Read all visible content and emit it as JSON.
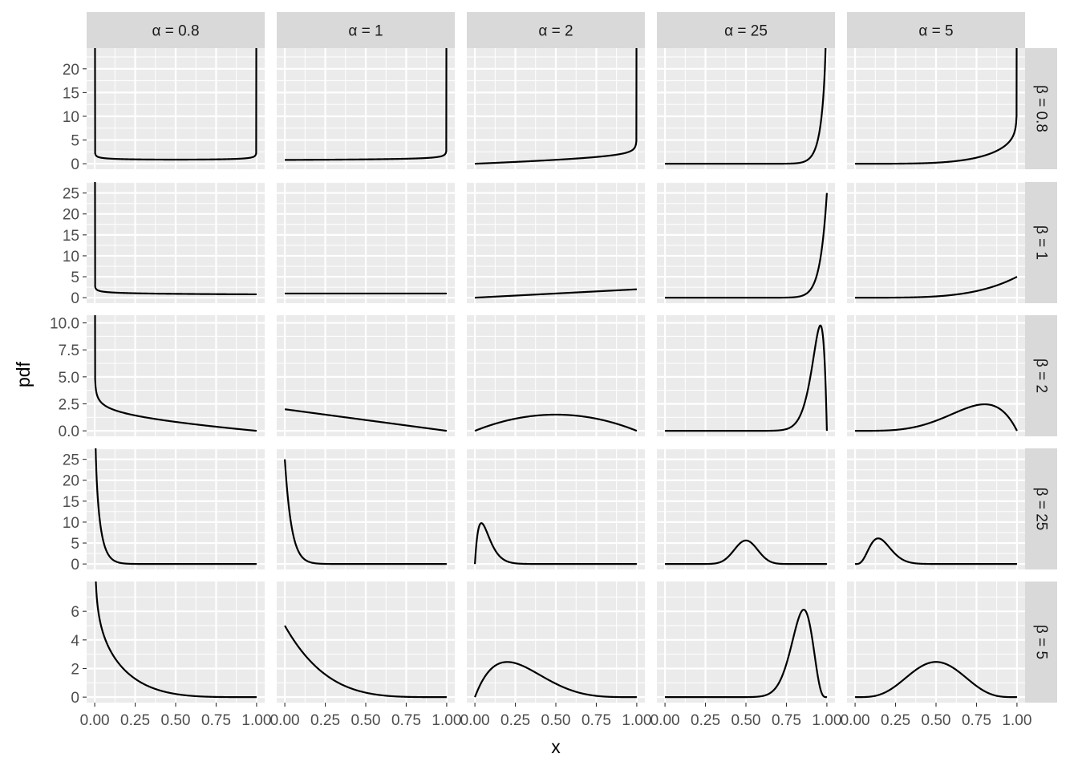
{
  "chart_data": {
    "type": "line",
    "title": "",
    "xlabel": "x",
    "ylabel": "pdf",
    "column_facet_labels": [
      "α = 0.8",
      "α = 1",
      "α = 2",
      "α = 25",
      "α = 5"
    ],
    "row_facet_labels": [
      "β = 0.8",
      "β = 1",
      "β = 2",
      "β = 25",
      "β = 5"
    ],
    "alpha_values": [
      0.8,
      1,
      2,
      25,
      5
    ],
    "beta_values": [
      0.8,
      1,
      2,
      25,
      5
    ],
    "xlim": [
      0,
      1
    ],
    "x_ticks": [
      0,
      0.25,
      0.5,
      0.75,
      1
    ],
    "x_tick_labels": [
      "0.00",
      "0.25",
      "0.50",
      "0.75",
      "1.00"
    ],
    "rows": [
      {
        "ylim": [
          0,
          23.2
        ],
        "y_ticks": [
          0,
          5,
          10,
          15,
          20
        ],
        "y_tick_labels": [
          "0",
          "5",
          "10",
          "15",
          "20"
        ]
      },
      {
        "ylim": [
          0,
          26.3
        ],
        "y_ticks": [
          0,
          5,
          10,
          15,
          20,
          25
        ],
        "y_tick_labels": [
          "0",
          "5",
          "10",
          "15",
          "20",
          "25"
        ]
      },
      {
        "ylim": [
          0,
          10.2
        ],
        "y_ticks": [
          0,
          2.5,
          5,
          7.5,
          10
        ],
        "y_tick_labels": [
          "0.0",
          "2.5",
          "5.0",
          "7.5",
          "10.0"
        ]
      },
      {
        "ylim": [
          0,
          26.3
        ],
        "y_ticks": [
          0,
          5,
          10,
          15,
          20,
          25
        ],
        "y_tick_labels": [
          "0",
          "5",
          "10",
          "15",
          "20",
          "25"
        ]
      },
      {
        "ylim": [
          0,
          7.7
        ],
        "y_ticks": [
          0,
          2,
          4,
          6
        ],
        "y_tick_labels": [
          "0",
          "2",
          "4",
          "6"
        ]
      }
    ],
    "series_description": "Beta(α, β) probability density evaluated on x in [0, 1]",
    "grid": true,
    "line_color": "#000000",
    "panel_background": "#ebebeb",
    "strip_background": "#d9d9d9"
  }
}
